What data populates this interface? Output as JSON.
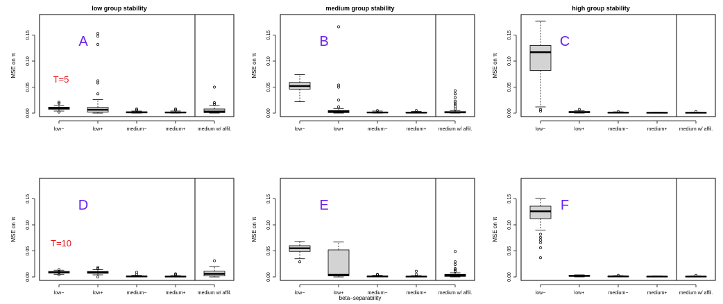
{
  "figure": {
    "col_titles": [
      "low group stability",
      "medium group stability",
      "high group stability"
    ],
    "xlabel": "beta−separability",
    "letter_color": "#6a22ee",
    "annotation_color": "#e8141a",
    "box_fill": "#d3d3d3"
  },
  "chart_data": [
    {
      "type": "box",
      "panel_label": "A",
      "annotation": "T=5",
      "categories": [
        "low−",
        "low+",
        "medium−",
        "medium+",
        "medium w/ affil."
      ],
      "ylabel": "MSE on π",
      "ylim": [
        0,
        0.18
      ],
      "yticks": [
        "0.00",
        "0.05",
        "0.10",
        "0.15"
      ],
      "grid": false,
      "separator_before": 5,
      "series": [
        {
          "q1": 0.0075,
          "median": 0.0095,
          "q3": 0.0115,
          "whisker_low": 0.004,
          "whisker_high": 0.015,
          "outliers": [
            0.002,
            0.019,
            0.021
          ]
        },
        {
          "q1": 0.002,
          "median": 0.0065,
          "q3": 0.011,
          "whisker_low": 0.0,
          "whisker_high": 0.026,
          "outliers": [
            0.037,
            0.058,
            0.062,
            0.132,
            0.148,
            0.153
          ]
        },
        {
          "q1": 0.0005,
          "median": 0.0015,
          "q3": 0.0025,
          "whisker_low": 0.0,
          "whisker_high": 0.004,
          "outliers": [
            0.006,
            0.008
          ]
        },
        {
          "q1": 0.0005,
          "median": 0.0012,
          "q3": 0.0022,
          "whisker_low": 0.0,
          "whisker_high": 0.004,
          "outliers": [
            0.006,
            0.008
          ]
        },
        {
          "q1": 0.001,
          "median": 0.003,
          "q3": 0.008,
          "whisker_low": 0.0,
          "whisker_high": 0.015,
          "outliers": [
            0.017,
            0.02,
            0.05
          ]
        }
      ]
    },
    {
      "type": "box",
      "panel_label": "B",
      "annotation": "",
      "categories": [
        "low−",
        "low+",
        "medium−",
        "medium+",
        "medium w/ affil."
      ],
      "ylabel": "MSE on π",
      "ylim": [
        0,
        0.18
      ],
      "yticks": [
        "0.00",
        "0.05",
        "0.10",
        "0.15"
      ],
      "grid": false,
      "separator_before": 5,
      "series": [
        {
          "q1": 0.046,
          "median": 0.052,
          "q3": 0.059,
          "whisker_low": 0.022,
          "whisker_high": 0.074,
          "outliers": []
        },
        {
          "q1": 0.001,
          "median": 0.003,
          "q3": 0.005,
          "whisker_low": 0.0,
          "whisker_high": 0.009,
          "outliers": [
            0.012,
            0.025,
            0.05,
            0.054,
            0.166
          ]
        },
        {
          "q1": 0.0005,
          "median": 0.0012,
          "q3": 0.002,
          "whisker_low": 0.0,
          "whisker_high": 0.004,
          "outliers": [
            0.005
          ]
        },
        {
          "q1": 0.0005,
          "median": 0.001,
          "q3": 0.002,
          "whisker_low": 0.0,
          "whisker_high": 0.0035,
          "outliers": [
            0.005
          ]
        },
        {
          "q1": 0.0005,
          "median": 0.0015,
          "q3": 0.003,
          "whisker_low": 0.0,
          "whisker_high": 0.005,
          "outliers": [
            0.008,
            0.012,
            0.016,
            0.019,
            0.023,
            0.03,
            0.037,
            0.043
          ]
        }
      ]
    },
    {
      "type": "box",
      "panel_label": "C",
      "annotation": "",
      "categories": [
        "low−",
        "low+",
        "medium−",
        "medium+",
        "medium w/ affil."
      ],
      "ylabel": "MSE on π",
      "ylim": [
        0,
        0.18
      ],
      "yticks": [
        "0.00",
        "0.05",
        "0.10",
        "0.15"
      ],
      "grid": false,
      "separator_before": 5,
      "series": [
        {
          "q1": 0.082,
          "median": 0.117,
          "q3": 0.13,
          "whisker_low": 0.012,
          "whisker_high": 0.177,
          "outliers": [
            0.004,
            0.007
          ]
        },
        {
          "q1": 0.001,
          "median": 0.002,
          "q3": 0.003,
          "whisker_low": 0.0,
          "whisker_high": 0.005,
          "outliers": [
            0.007
          ]
        },
        {
          "q1": 0.0005,
          "median": 0.001,
          "q3": 0.0015,
          "whisker_low": 0.0,
          "whisker_high": 0.0025,
          "outliers": [
            0.003
          ]
        },
        {
          "q1": 0.0004,
          "median": 0.0008,
          "q3": 0.0012,
          "whisker_low": 0.0,
          "whisker_high": 0.002,
          "outliers": []
        },
        {
          "q1": 0.0004,
          "median": 0.0008,
          "q3": 0.0012,
          "whisker_low": 0.0,
          "whisker_high": 0.002,
          "outliers": [
            0.003
          ]
        }
      ]
    },
    {
      "type": "box",
      "panel_label": "D",
      "annotation": "T=10",
      "categories": [
        "low−",
        "low+",
        "medium−",
        "medium+",
        "medium w/ affil."
      ],
      "ylabel": "MSE on π",
      "ylim": [
        0,
        0.18
      ],
      "yticks": [
        "0.00",
        "0.05",
        "0.10",
        "0.15"
      ],
      "grid": false,
      "separator_before": 5,
      "series": [
        {
          "q1": 0.0075,
          "median": 0.009,
          "q3": 0.0105,
          "whisker_low": 0.005,
          "whisker_high": 0.013,
          "outliers": [
            0.004,
            0.014
          ]
        },
        {
          "q1": 0.007,
          "median": 0.009,
          "q3": 0.0105,
          "whisker_low": 0.004,
          "whisker_high": 0.014,
          "outliers": [
            0.0,
            0.016,
            0.018
          ]
        },
        {
          "q1": 0.0005,
          "median": 0.001,
          "q3": 0.0015,
          "whisker_low": 0.0,
          "whisker_high": 0.003,
          "outliers": [
            0.005,
            0.009
          ]
        },
        {
          "q1": 0.0003,
          "median": 0.0008,
          "q3": 0.0013,
          "whisker_low": 0.0,
          "whisker_high": 0.0025,
          "outliers": [
            0.004,
            0.006
          ]
        },
        {
          "q1": 0.002,
          "median": 0.006,
          "q3": 0.011,
          "whisker_low": 0.0,
          "whisker_high": 0.02,
          "outliers": [
            0.031
          ]
        }
      ]
    },
    {
      "type": "box",
      "panel_label": "E",
      "annotation": "",
      "categories": [
        "low−",
        "low+",
        "medium−",
        "medium+",
        "medium w/ affil."
      ],
      "ylabel": "MSE on π",
      "ylim": [
        0,
        0.18
      ],
      "yticks": [
        "0.00",
        "0.05",
        "0.10",
        "0.15"
      ],
      "grid": false,
      "separator_before": 5,
      "series": [
        {
          "q1": 0.049,
          "median": 0.055,
          "q3": 0.06,
          "whisker_low": 0.035,
          "whisker_high": 0.068,
          "outliers": [
            0.029
          ]
        },
        {
          "q1": 0.002,
          "median": 0.004,
          "q3": 0.052,
          "whisker_low": 0.0,
          "whisker_high": 0.067,
          "outliers": []
        },
        {
          "q1": 0.0005,
          "median": 0.001,
          "q3": 0.0015,
          "whisker_low": 0.0,
          "whisker_high": 0.003,
          "outliers": [
            0.004,
            0.005
          ]
        },
        {
          "q1": 0.0003,
          "median": 0.0008,
          "q3": 0.0013,
          "whisker_low": 0.0,
          "whisker_high": 0.0025,
          "outliers": [
            0.005,
            0.011
          ]
        },
        {
          "q1": 0.001,
          "median": 0.003,
          "q3": 0.005,
          "whisker_low": 0.0,
          "whisker_high": 0.008,
          "outliers": [
            0.011,
            0.014,
            0.016,
            0.024,
            0.029,
            0.049
          ]
        }
      ]
    },
    {
      "type": "box",
      "panel_label": "F",
      "annotation": "",
      "categories": [
        "low−",
        "low+",
        "medium−",
        "medium+",
        "medium w/ affil."
      ],
      "ylabel": "MSE on π",
      "ylim": [
        0,
        0.18
      ],
      "yticks": [
        "0.00",
        "0.05",
        "0.10",
        "0.15"
      ],
      "grid": false,
      "separator_before": 5,
      "series": [
        {
          "q1": 0.112,
          "median": 0.126,
          "q3": 0.136,
          "whisker_low": 0.09,
          "whisker_high": 0.151,
          "outliers": [
            0.037,
            0.056,
            0.066,
            0.071,
            0.076,
            0.082
          ]
        },
        {
          "q1": 0.0015,
          "median": 0.002,
          "q3": 0.003,
          "whisker_low": 0.0,
          "whisker_high": 0.004,
          "outliers": []
        },
        {
          "q1": 0.0005,
          "median": 0.001,
          "q3": 0.0015,
          "whisker_low": 0.0,
          "whisker_high": 0.0025,
          "outliers": [
            0.003
          ]
        },
        {
          "q1": 0.0003,
          "median": 0.0008,
          "q3": 0.0012,
          "whisker_low": 0.0,
          "whisker_high": 0.002,
          "outliers": []
        },
        {
          "q1": 0.0003,
          "median": 0.0008,
          "q3": 0.0012,
          "whisker_low": 0.0,
          "whisker_high": 0.002,
          "outliers": [
            0.003
          ]
        }
      ]
    }
  ]
}
